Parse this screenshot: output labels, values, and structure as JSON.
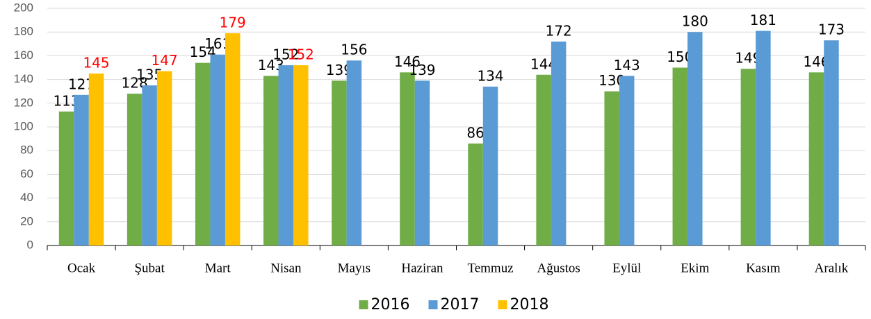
{
  "chart_data": {
    "type": "bar",
    "categories": [
      "Ocak",
      "Şubat",
      "Mart",
      "Nisan",
      "Mayıs",
      "Haziran",
      "Temmuz",
      "Ağustos",
      "Eylül",
      "Ekim",
      "Kasım",
      "Aralık"
    ],
    "series": [
      {
        "name": "2016",
        "color": "#70ad47",
        "label_color": "#000000",
        "values": [
          113,
          128,
          154,
          143,
          139,
          146,
          86,
          144,
          130,
          150,
          149,
          146
        ]
      },
      {
        "name": "2017",
        "color": "#5b9bd5",
        "label_color": "#000000",
        "values": [
          127,
          135,
          161,
          152,
          156,
          139,
          134,
          172,
          143,
          180,
          181,
          173
        ]
      },
      {
        "name": "2018",
        "color": "#ffc000",
        "label_color": "#ff0000",
        "values": [
          145,
          147,
          179,
          152,
          null,
          null,
          null,
          null,
          null,
          null,
          null,
          null
        ]
      }
    ],
    "ylim": [
      0,
      200
    ],
    "yticks": [
      0,
      20,
      40,
      60,
      80,
      100,
      120,
      140,
      160,
      180,
      200
    ],
    "grid": true,
    "legend": "bottom"
  }
}
